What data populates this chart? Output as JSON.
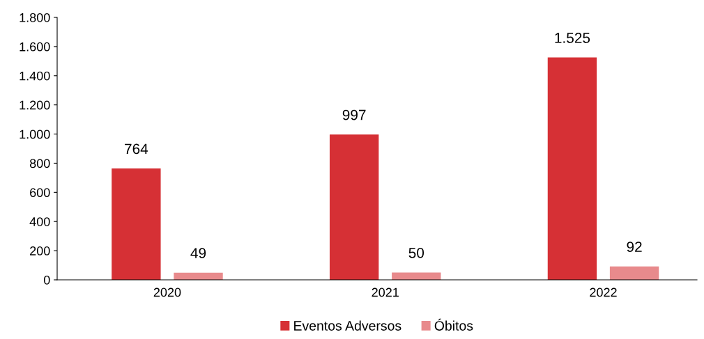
{
  "chart_data": {
    "type": "bar",
    "categories": [
      "2020",
      "2021",
      "2022"
    ],
    "series": [
      {
        "name": "Eventos Adversos",
        "color": "#d63035",
        "values": [
          764,
          997,
          1525
        ],
        "value_labels": [
          "764",
          "997",
          "1.525"
        ]
      },
      {
        "name": "Óbitos",
        "color": "#e88a8c",
        "values": [
          49,
          50,
          92
        ],
        "value_labels": [
          "49",
          "50",
          "92"
        ]
      }
    ],
    "ylim": [
      0,
      1800
    ],
    "yticks": [
      0,
      200,
      400,
      600,
      800,
      {
        "value": 1000,
        "label": "1.000"
      },
      {
        "value": 1200,
        "label": "1.200"
      },
      {
        "value": 1400,
        "label": "1.400"
      },
      {
        "value": 1600,
        "label": "1.600"
      },
      {
        "value": 1800,
        "label": "1.800"
      }
    ],
    "grid": false,
    "legend": "bottom"
  }
}
